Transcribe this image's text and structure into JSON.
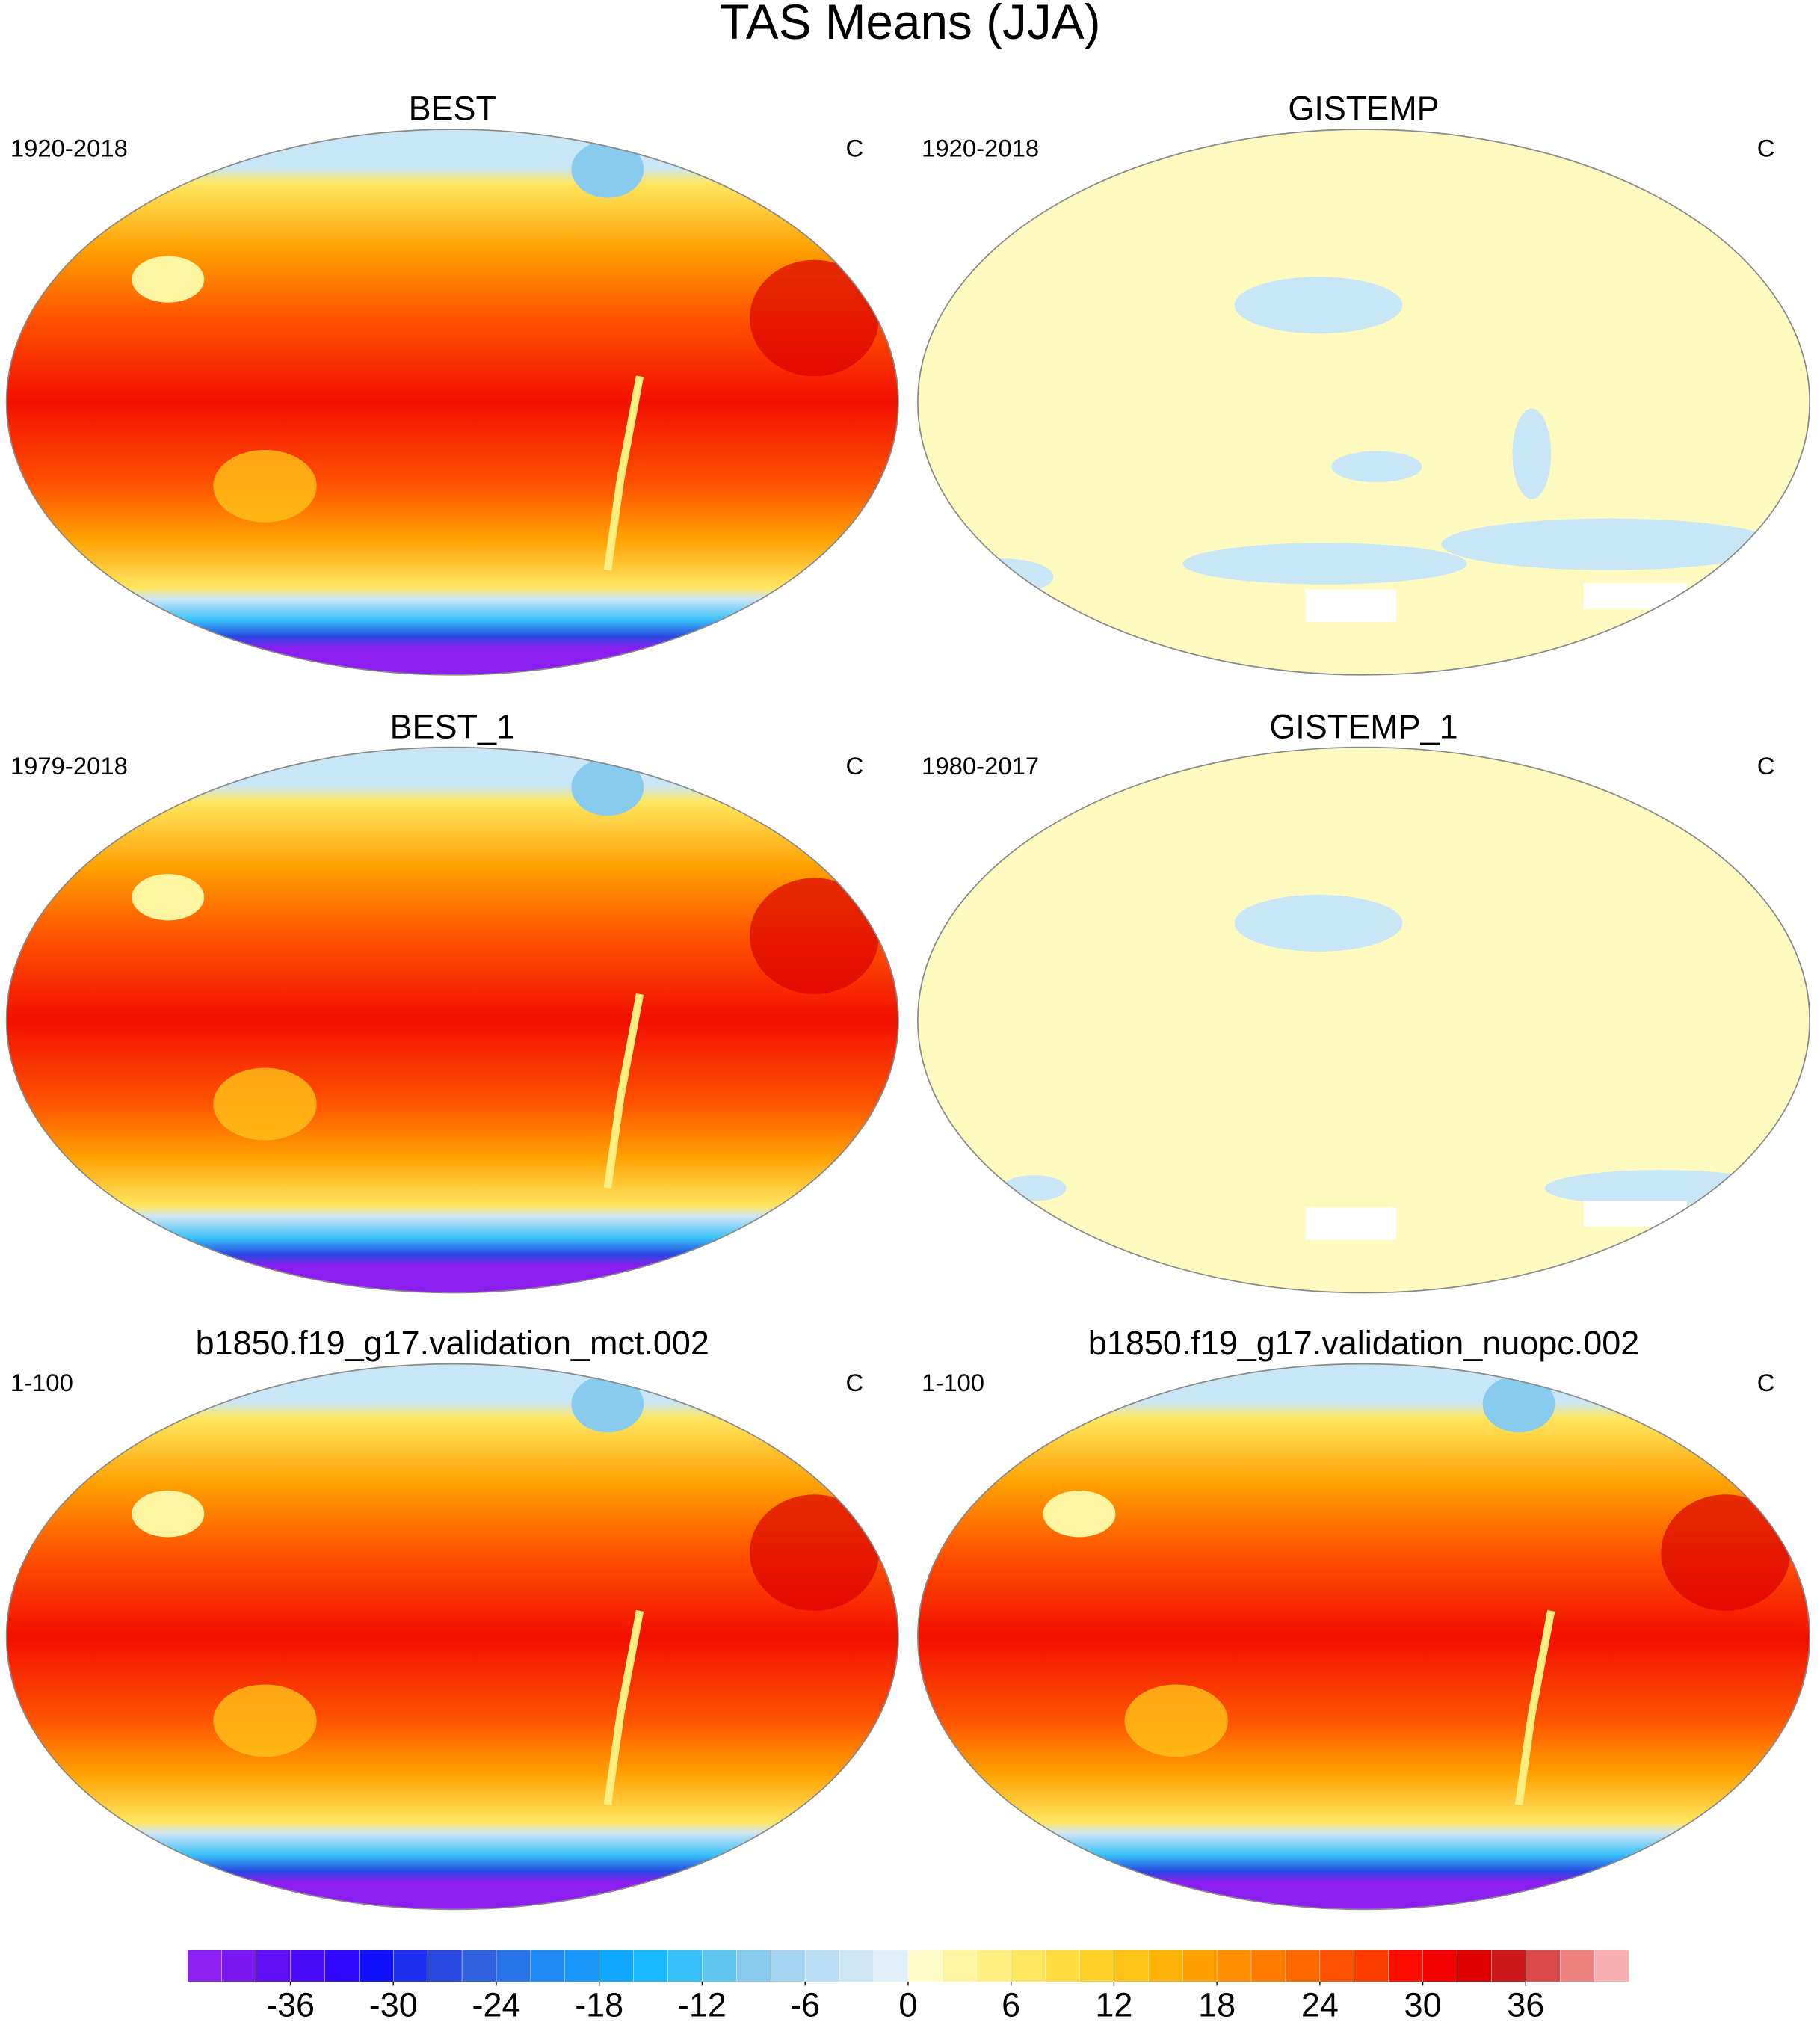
{
  "title": "TAS Means (JJA)",
  "panels": [
    {
      "title": "BEST",
      "left_label": "1920-2018",
      "right_label": "C",
      "style": "model"
    },
    {
      "title": "GISTEMP",
      "left_label": "1920-2018",
      "right_label": "C",
      "style": "anomaly"
    },
    {
      "title": "BEST_1",
      "left_label": "1979-2018",
      "right_label": "C",
      "style": "model"
    },
    {
      "title": "GISTEMP_1",
      "left_label": "1980-2017",
      "right_label": "C",
      "style": "anomaly"
    },
    {
      "title": "b1850.f19_g17.validation_mct.002",
      "left_label": "1-100",
      "right_label": "C",
      "style": "model"
    },
    {
      "title": "b1850.f19_g17.validation_nuopc.002",
      "left_label": "1-100",
      "right_label": "C",
      "style": "model"
    }
  ],
  "colorbar": {
    "clim": [
      -42,
      42
    ],
    "ticks": [
      -36,
      -30,
      -24,
      -18,
      -12,
      -6,
      0,
      6,
      12,
      18,
      24,
      30,
      36
    ],
    "colors": [
      "#8b1ef0",
      "#7a18f2",
      "#6010f5",
      "#4a0cf8",
      "#3008ff",
      "#1010ff",
      "#2030f0",
      "#2848e0",
      "#3060e0",
      "#2a74ea",
      "#2088f4",
      "#1898fa",
      "#10a8ff",
      "#18b8ff",
      "#38c0f8",
      "#60c4f0",
      "#88cbee",
      "#a4d4f0",
      "#bcdef2",
      "#cfe6f5",
      "#e0eff8",
      "#fffbc8",
      "#fff4a0",
      "#ffee80",
      "#ffe660",
      "#ffdc40",
      "#ffd028",
      "#ffc218",
      "#ffb208",
      "#ffa000",
      "#ff8e00",
      "#ff7c00",
      "#ff6800",
      "#ff5200",
      "#ff3c00",
      "#ff0c00",
      "#f20000",
      "#dc0000",
      "#cc1818",
      "#dc4848",
      "#ee8080",
      "#f8b0b0"
    ]
  }
}
